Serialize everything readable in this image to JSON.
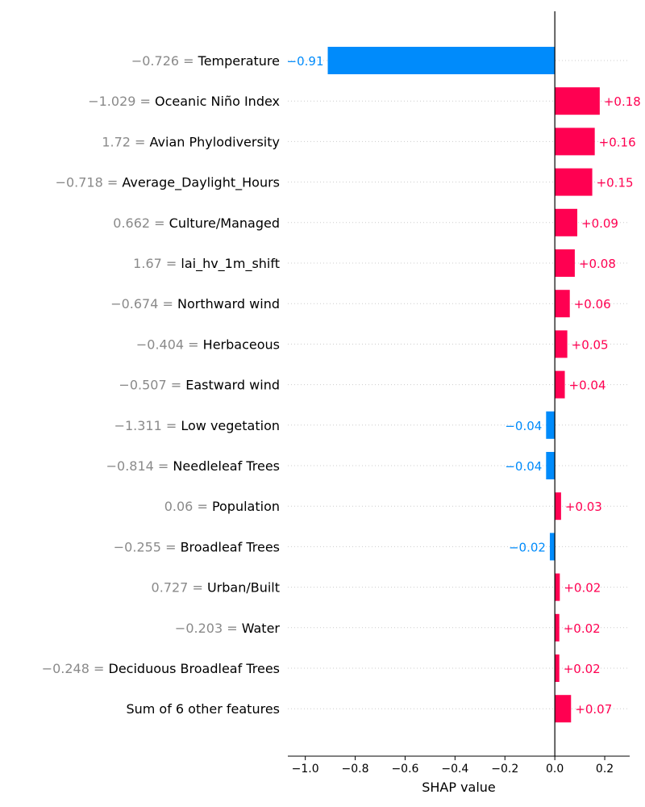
{
  "chart_data": {
    "type": "bar",
    "orientation": "horizontal",
    "xlabel": "SHAP value",
    "xlim": [
      -1.07,
      0.3
    ],
    "xticks": [
      -1.0,
      -0.8,
      -0.6,
      -0.4,
      -0.2,
      0.0,
      0.2
    ],
    "xtick_labels": [
      "−1.0",
      "−0.8",
      "−0.6",
      "−0.4",
      "−0.2",
      "0.0",
      "0.2"
    ],
    "colors": {
      "positive": "#ff0051",
      "negative": "#008bfb",
      "value_text": "#8a8a8a"
    },
    "features": [
      {
        "value": "−0.726",
        "name": "Temperature",
        "shap": -0.91,
        "shap_label": "−0.91"
      },
      {
        "value": "−1.029",
        "name": "Oceanic Niño Index",
        "shap": 0.18,
        "shap_label": "+0.18"
      },
      {
        "value": "1.72",
        "name": "Avian Phylodiversity",
        "shap": 0.16,
        "shap_label": "+0.16"
      },
      {
        "value": "−0.718",
        "name": "Average_Daylight_Hours",
        "shap": 0.15,
        "shap_label": "+0.15"
      },
      {
        "value": "0.662",
        "name": "Culture/Managed",
        "shap": 0.09,
        "shap_label": "+0.09"
      },
      {
        "value": "1.67",
        "name": "lai_hv_1m_shift",
        "shap": 0.08,
        "shap_label": "+0.08"
      },
      {
        "value": "−0.674",
        "name": "Northward wind",
        "shap": 0.06,
        "shap_label": "+0.06"
      },
      {
        "value": "−0.404",
        "name": "Herbaceous",
        "shap": 0.05,
        "shap_label": "+0.05"
      },
      {
        "value": "−0.507",
        "name": "Eastward wind",
        "shap": 0.04,
        "shap_label": "+0.04"
      },
      {
        "value": "−1.311",
        "name": "Low vegetation",
        "shap": -0.035,
        "shap_label": "−0.04"
      },
      {
        "value": "−0.814",
        "name": "Needleleaf Trees",
        "shap": -0.035,
        "shap_label": "−0.04"
      },
      {
        "value": "0.06",
        "name": "Population",
        "shap": 0.025,
        "shap_label": "+0.03"
      },
      {
        "value": "−0.255",
        "name": "Broadleaf Trees",
        "shap": -0.02,
        "shap_label": "−0.02"
      },
      {
        "value": "0.727",
        "name": "Urban/Built",
        "shap": 0.02,
        "shap_label": "+0.02"
      },
      {
        "value": "−0.203",
        "name": "Water",
        "shap": 0.018,
        "shap_label": "+0.02"
      },
      {
        "value": "−0.248",
        "name": "Deciduous Broadleaf Trees",
        "shap": 0.018,
        "shap_label": "+0.02"
      },
      {
        "value": "",
        "name": "Sum of 6 other features",
        "shap": 0.065,
        "shap_label": "+0.07"
      }
    ]
  }
}
